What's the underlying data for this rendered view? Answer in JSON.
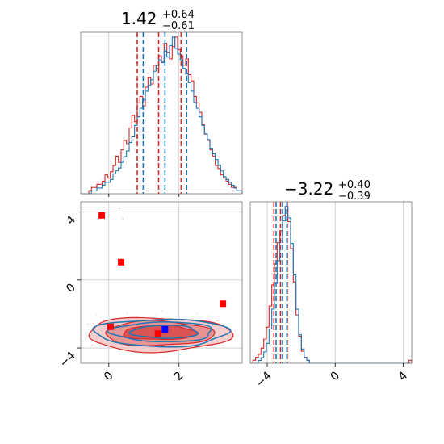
{
  "chart_data": {
    "type": "corner",
    "series": [
      {
        "name": "",
        "color": "#d62728"
      },
      {
        "name": "",
        "color": "#1f77b4"
      }
    ],
    "parameters": [
      {
        "median_text": "1.42",
        "plus_text": "+0.64",
        "minus_text": "−0.61",
        "xlim": [
          -0.8,
          3.8
        ],
        "ticks": [
          0,
          2
        ],
        "tick_labels": [
          "0",
          "2"
        ],
        "quantile_lines": {
          "red": [
            0.81,
            1.42,
            2.06
          ],
          "blue": [
            0.98,
            1.6,
            2.22
          ]
        }
      },
      {
        "median_text": "−3.22",
        "plus_text": "+0.40",
        "minus_text": "−0.39",
        "xlim": [
          -5.0,
          4.5
        ],
        "ticks": [
          -4,
          0,
          4
        ],
        "tick_labels": [
          "−4",
          "0",
          "4"
        ],
        "quantile_lines": {
          "red": [
            -3.61,
            -3.22,
            -2.82
          ],
          "blue": [
            -3.48,
            -3.1,
            -2.85
          ]
        }
      }
    ],
    "joint": {
      "xlim": [
        -0.8,
        3.8
      ],
      "ylim": [
        -4.9,
        4.6
      ],
      "xticks": [
        0,
        2
      ],
      "xtick_labels": [
        "0",
        "2"
      ],
      "yticks": [
        -4,
        0,
        4
      ],
      "ytick_labels": [
        "−4",
        "0",
        "4"
      ],
      "red_markers": [
        {
          "x": -0.2,
          "y": 3.8
        },
        {
          "x": 0.35,
          "y": 1.05
        },
        {
          "x": 3.25,
          "y": -1.4
        },
        {
          "x": 0.05,
          "y": -2.75
        },
        {
          "x": 1.4,
          "y": -3.15
        }
      ],
      "blue_markers": [
        {
          "x": 1.6,
          "y": -2.9
        }
      ],
      "red_contours": [
        {
          "cx": 1.45,
          "cy": -3.1,
          "rx": 1.05,
          "ry": 0.42
        },
        {
          "cx": 1.42,
          "cy": -3.15,
          "rx": 1.55,
          "ry": 0.72
        },
        {
          "cx": 1.42,
          "cy": -3.2,
          "rx": 2.05,
          "ry": 1.0
        }
      ],
      "blue_contours": [
        {
          "cx": 1.6,
          "cy": -3.05,
          "rx": 0.95,
          "ry": 0.38
        },
        {
          "cx": 1.55,
          "cy": -3.05,
          "rx": 1.45,
          "ry": 0.58
        },
        {
          "cx": 1.5,
          "cy": -3.1,
          "rx": 1.9,
          "ry": 0.8
        }
      ]
    },
    "hist1": {
      "bin_edges": [
        -0.8,
        3.8
      ],
      "red": [
        0,
        0,
        0,
        1,
        2,
        2,
        3,
        3,
        4,
        6,
        5,
        7,
        9,
        12,
        10,
        14,
        17,
        16,
        21,
        25,
        23,
        29,
        31,
        28,
        34,
        37,
        35,
        41,
        40,
        44,
        42,
        48,
        45,
        43,
        47,
        50,
        46,
        44,
        41,
        43,
        38,
        36,
        31,
        29,
        26,
        22,
        19,
        17,
        14,
        12,
        9,
        8,
        6,
        5,
        4,
        3,
        2,
        2,
        1,
        1
      ],
      "blue": [
        0,
        0,
        0,
        0,
        1,
        1,
        2,
        2,
        3,
        4,
        4,
        5,
        7,
        8,
        9,
        11,
        13,
        15,
        18,
        20,
        24,
        27,
        30,
        33,
        36,
        38,
        40,
        43,
        45,
        47,
        46,
        50,
        48,
        52,
        55,
        51,
        49,
        47,
        44,
        42,
        39,
        36,
        32,
        30,
        27,
        24,
        21,
        19,
        16,
        14,
        12,
        10,
        8,
        6,
        5,
        4,
        3,
        2,
        1,
        1
      ]
    },
    "hist2": {
      "bin_edges": [
        -5.0,
        4.5
      ],
      "red": [
        0,
        1,
        2,
        3,
        5,
        8,
        12,
        19,
        26,
        33,
        40,
        44,
        49,
        52,
        47,
        38,
        27,
        16,
        9,
        4,
        2,
        1,
        0,
        0,
        0,
        0,
        0,
        0,
        0,
        0,
        0,
        0,
        0,
        0,
        0,
        0,
        0,
        0,
        0,
        0,
        0,
        0,
        0,
        0,
        0,
        0,
        0,
        0,
        0,
        0,
        0,
        0,
        0,
        0,
        0,
        0,
        0,
        0,
        0,
        1
      ],
      "blue": [
        0,
        0,
        0,
        1,
        2,
        4,
        7,
        12,
        19,
        28,
        36,
        43,
        50,
        55,
        51,
        42,
        31,
        19,
        10,
        5,
        2,
        1,
        0,
        0,
        0,
        0,
        0,
        0,
        0,
        0,
        0,
        0,
        0,
        0,
        0,
        0,
        0,
        0,
        0,
        0,
        0,
        0,
        0,
        0,
        0,
        0,
        0,
        0,
        0,
        0,
        0,
        0,
        0,
        0,
        0,
        0,
        0,
        0,
        0,
        0
      ]
    }
  }
}
